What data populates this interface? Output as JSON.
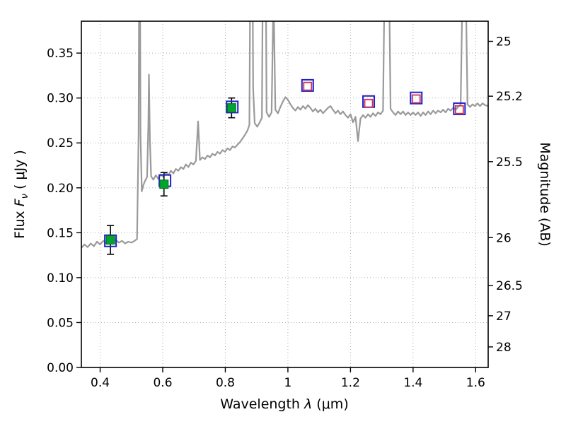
{
  "labels": {
    "flux_prefix": "Flux ",
    "flux_symbol": "F",
    "flux_subscript": "ν",
    "flux_units": " ( μJy )",
    "x_prefix": "Wavelength ",
    "x_symbol": "λ",
    "x_units": " (μm)",
    "right": "Magnitude (AB)"
  },
  "chart_data": {
    "type": "line+scatter",
    "title": "",
    "xlabel": "Wavelength λ (μm)",
    "ylabel": "Flux Fν ( μJy )",
    "ylabel_right": "Magnitude (AB)",
    "xlim": [
      0.34,
      1.64
    ],
    "ylim": [
      0.0,
      0.3855
    ],
    "grid": true,
    "mag_zeropoint": 23.9,
    "x_ticks": [
      0.4,
      0.6,
      0.8,
      1.0,
      1.2,
      1.4,
      1.6
    ],
    "x_tick_labels": [
      "0.4",
      "0.6",
      "0.8",
      "1",
      "1.2",
      "1.4",
      "1.6"
    ],
    "y_ticks_left": [
      0.0,
      0.05,
      0.1,
      0.15,
      0.2,
      0.25,
      0.3,
      0.35
    ],
    "y_tick_labels_left": [
      "0.00",
      "0.05",
      "0.10",
      "0.15",
      "0.20",
      "0.25",
      "0.30",
      "0.35"
    ],
    "y_ticks_right_mag": [
      25,
      25.2,
      25.5,
      26,
      26.5,
      27,
      28
    ],
    "y_tick_labels_right": [
      "25",
      "25.2",
      "25.5",
      "26",
      "26.5",
      "27",
      "28"
    ],
    "colors": {
      "grid": "#b0b0b0",
      "frame": "#000000",
      "spectrum": "#9a9a9a",
      "observed_fill": "#00a42e",
      "observed_edge": "#006b1c",
      "errorbar": "#000000",
      "model_blue": "#2020c8",
      "model_red": "#cc3355"
    },
    "series": {
      "spectrum": {
        "name": "model spectrum",
        "color": "#9a9a9a",
        "points": [
          [
            0.34,
            0.133
          ],
          [
            0.35,
            0.137
          ],
          [
            0.36,
            0.134
          ],
          [
            0.37,
            0.138
          ],
          [
            0.38,
            0.135
          ],
          [
            0.39,
            0.14
          ],
          [
            0.4,
            0.137
          ],
          [
            0.41,
            0.141
          ],
          [
            0.42,
            0.138
          ],
          [
            0.43,
            0.142
          ],
          [
            0.44,
            0.139
          ],
          [
            0.45,
            0.142
          ],
          [
            0.46,
            0.139
          ],
          [
            0.47,
            0.141
          ],
          [
            0.48,
            0.138
          ],
          [
            0.49,
            0.14
          ],
          [
            0.5,
            0.139
          ],
          [
            0.51,
            0.141
          ],
          [
            0.518,
            0.143
          ],
          [
            0.523,
            0.26
          ],
          [
            0.526,
            0.6
          ],
          [
            0.529,
            0.26
          ],
          [
            0.533,
            0.196
          ],
          [
            0.538,
            0.203
          ],
          [
            0.544,
            0.208
          ],
          [
            0.55,
            0.212
          ],
          [
            0.554,
            0.27
          ],
          [
            0.556,
            0.326
          ],
          [
            0.559,
            0.252
          ],
          [
            0.563,
            0.213
          ],
          [
            0.57,
            0.209
          ],
          [
            0.578,
            0.214
          ],
          [
            0.586,
            0.21
          ],
          [
            0.594,
            0.215
          ],
          [
            0.602,
            0.212
          ],
          [
            0.61,
            0.217
          ],
          [
            0.618,
            0.214
          ],
          [
            0.626,
            0.219
          ],
          [
            0.634,
            0.216
          ],
          [
            0.642,
            0.221
          ],
          [
            0.65,
            0.219
          ],
          [
            0.658,
            0.223
          ],
          [
            0.666,
            0.221
          ],
          [
            0.674,
            0.226
          ],
          [
            0.682,
            0.223
          ],
          [
            0.69,
            0.228
          ],
          [
            0.698,
            0.226
          ],
          [
            0.706,
            0.23
          ],
          [
            0.713,
            0.274
          ],
          [
            0.719,
            0.231
          ],
          [
            0.727,
            0.234
          ],
          [
            0.735,
            0.232
          ],
          [
            0.743,
            0.236
          ],
          [
            0.751,
            0.234
          ],
          [
            0.759,
            0.238
          ],
          [
            0.767,
            0.236
          ],
          [
            0.775,
            0.24
          ],
          [
            0.783,
            0.238
          ],
          [
            0.791,
            0.242
          ],
          [
            0.799,
            0.24
          ],
          [
            0.807,
            0.244
          ],
          [
            0.815,
            0.242
          ],
          [
            0.823,
            0.246
          ],
          [
            0.831,
            0.245
          ],
          [
            0.839,
            0.248
          ],
          [
            0.847,
            0.251
          ],
          [
            0.855,
            0.255
          ],
          [
            0.863,
            0.259
          ],
          [
            0.871,
            0.264
          ],
          [
            0.877,
            0.27
          ],
          [
            0.881,
            0.52
          ],
          [
            0.885,
            0.6
          ],
          [
            0.889,
            0.31
          ],
          [
            0.894,
            0.272
          ],
          [
            0.902,
            0.268
          ],
          [
            0.91,
            0.273
          ],
          [
            0.917,
            0.278
          ],
          [
            0.922,
            0.56
          ],
          [
            0.927,
            0.6
          ],
          [
            0.932,
            0.284
          ],
          [
            0.94,
            0.279
          ],
          [
            0.948,
            0.284
          ],
          [
            0.954,
            0.42
          ],
          [
            0.96,
            0.287
          ],
          [
            0.968,
            0.283
          ],
          [
            0.976,
            0.29
          ],
          [
            0.984,
            0.296
          ],
          [
            0.992,
            0.301
          ],
          [
            1.0,
            0.298
          ],
          [
            1.008,
            0.293
          ],
          [
            1.016,
            0.289
          ],
          [
            1.024,
            0.286
          ],
          [
            1.032,
            0.29
          ],
          [
            1.04,
            0.287
          ],
          [
            1.048,
            0.291
          ],
          [
            1.056,
            0.288
          ],
          [
            1.064,
            0.292
          ],
          [
            1.072,
            0.289
          ],
          [
            1.08,
            0.285
          ],
          [
            1.088,
            0.288
          ],
          [
            1.096,
            0.284
          ],
          [
            1.104,
            0.287
          ],
          [
            1.112,
            0.283
          ],
          [
            1.12,
            0.286
          ],
          [
            1.128,
            0.289
          ],
          [
            1.136,
            0.291
          ],
          [
            1.144,
            0.287
          ],
          [
            1.152,
            0.283
          ],
          [
            1.16,
            0.286
          ],
          [
            1.168,
            0.282
          ],
          [
            1.176,
            0.285
          ],
          [
            1.184,
            0.281
          ],
          [
            1.192,
            0.278
          ],
          [
            1.2,
            0.282
          ],
          [
            1.208,
            0.273
          ],
          [
            1.216,
            0.279
          ],
          [
            1.224,
            0.252
          ],
          [
            1.232,
            0.277
          ],
          [
            1.24,
            0.281
          ],
          [
            1.248,
            0.278
          ],
          [
            1.256,
            0.282
          ],
          [
            1.264,
            0.279
          ],
          [
            1.272,
            0.283
          ],
          [
            1.28,
            0.28
          ],
          [
            1.288,
            0.284
          ],
          [
            1.296,
            0.282
          ],
          [
            1.304,
            0.286
          ],
          [
            1.31,
            0.46
          ],
          [
            1.316,
            0.6
          ],
          [
            1.322,
            0.48
          ],
          [
            1.328,
            0.288
          ],
          [
            1.336,
            0.284
          ],
          [
            1.344,
            0.281
          ],
          [
            1.352,
            0.285
          ],
          [
            1.36,
            0.282
          ],
          [
            1.368,
            0.285
          ],
          [
            1.376,
            0.281
          ],
          [
            1.384,
            0.284
          ],
          [
            1.392,
            0.281
          ],
          [
            1.4,
            0.284
          ],
          [
            1.408,
            0.281
          ],
          [
            1.416,
            0.284
          ],
          [
            1.424,
            0.28
          ],
          [
            1.432,
            0.284
          ],
          [
            1.44,
            0.281
          ],
          [
            1.448,
            0.285
          ],
          [
            1.456,
            0.282
          ],
          [
            1.464,
            0.286
          ],
          [
            1.472,
            0.283
          ],
          [
            1.48,
            0.286
          ],
          [
            1.488,
            0.284
          ],
          [
            1.496,
            0.287
          ],
          [
            1.504,
            0.284
          ],
          [
            1.512,
            0.288
          ],
          [
            1.52,
            0.286
          ],
          [
            1.528,
            0.289
          ],
          [
            1.536,
            0.287
          ],
          [
            1.544,
            0.29
          ],
          [
            1.552,
            0.293
          ],
          [
            1.558,
            0.42
          ],
          [
            1.563,
            0.6
          ],
          [
            1.568,
            0.43
          ],
          [
            1.574,
            0.293
          ],
          [
            1.582,
            0.29
          ],
          [
            1.59,
            0.293
          ],
          [
            1.598,
            0.291
          ],
          [
            1.606,
            0.294
          ],
          [
            1.614,
            0.291
          ],
          [
            1.622,
            0.294
          ],
          [
            1.63,
            0.292
          ],
          [
            1.64,
            0.291
          ]
        ]
      },
      "observed": {
        "name": "observed photometry (flux, yerr)",
        "color": "#00a42e",
        "edge": "#006b1c",
        "points": [
          [
            0.433,
            0.142,
            0.016
          ],
          [
            0.604,
            0.204,
            0.013
          ],
          [
            0.82,
            0.289,
            0.011
          ]
        ]
      },
      "model_blue": {
        "name": "model photometry (blue open squares)",
        "color": "#2020c8",
        "points": [
          [
            0.433,
            0.141
          ],
          [
            0.607,
            0.208
          ],
          [
            0.822,
            0.29
          ],
          [
            1.063,
            0.314
          ],
          [
            1.258,
            0.296
          ],
          [
            1.41,
            0.3
          ],
          [
            1.548,
            0.288
          ]
        ]
      },
      "model_red": {
        "name": "model photometry (red open squares)",
        "color": "#cc3355",
        "points": [
          [
            1.063,
            0.313
          ],
          [
            1.258,
            0.294
          ],
          [
            1.41,
            0.299
          ],
          [
            1.548,
            0.287
          ]
        ]
      }
    }
  }
}
